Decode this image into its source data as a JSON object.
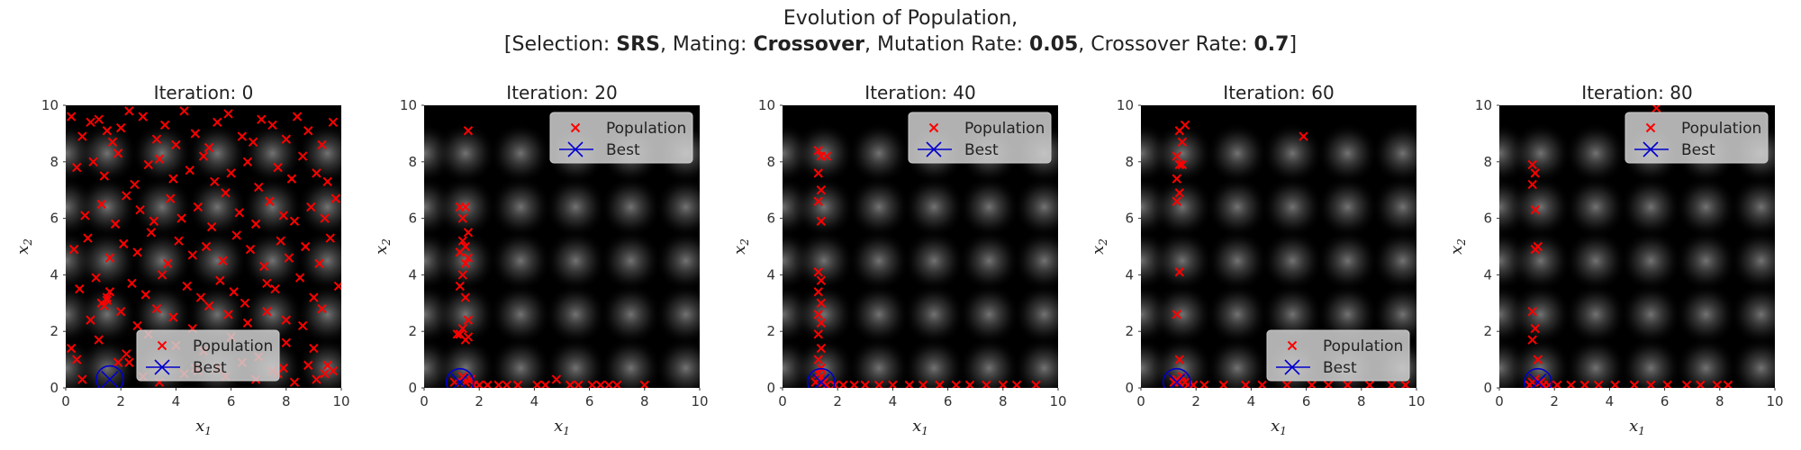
{
  "header": {
    "line1": "Evolution of Population,",
    "prefix": "[Selection: ",
    "selection": "SRS",
    "mating_label": ", Mating: ",
    "mating": "Crossover",
    "mutation_label": ", Mutation Rate: ",
    "mutation_rate": "0.05",
    "crossover_label": ", Crossover Rate: ",
    "crossover_rate": "0.7",
    "suffix": "]"
  },
  "colors": {
    "population": "#ff0000",
    "best": "#0000cc",
    "background": "#000000"
  },
  "legend_labels": [
    "Population",
    "Best"
  ],
  "chart_data": [
    {
      "type": "scatter",
      "title": "Iteration: 0",
      "xlabel": "x1",
      "ylabel": "x2",
      "xlim": [
        0,
        10
      ],
      "ylim": [
        0,
        10
      ],
      "xticks": [
        0,
        2,
        4,
        6,
        8,
        10
      ],
      "yticks": [
        0,
        2,
        4,
        6,
        8,
        10
      ],
      "legend": "lower-center",
      "series": [
        {
          "name": "Population",
          "marker": "x",
          "x": [
            0.2,
            0.6,
            0.9,
            1.2,
            1.5,
            1.7,
            2.0,
            2.3,
            2.8,
            3.3,
            3.6,
            4.0,
            4.3,
            4.7,
            5.2,
            5.5,
            5.9,
            6.4,
            6.8,
            7.1,
            7.5,
            8.0,
            8.4,
            8.8,
            9.3,
            9.7,
            0.4,
            1.0,
            1.4,
            1.9,
            2.5,
            3.0,
            3.4,
            3.9,
            4.5,
            5.0,
            5.4,
            6.0,
            6.6,
            7.0,
            7.7,
            8.2,
            8.6,
            9.1,
            9.5,
            0.7,
            1.3,
            1.8,
            2.2,
            2.7,
            3.2,
            3.8,
            4.2,
            4.8,
            5.3,
            5.8,
            6.3,
            6.9,
            7.4,
            7.9,
            8.3,
            8.9,
            9.4,
            9.8,
            0.3,
            0.8,
            1.6,
            2.1,
            2.6,
            3.1,
            3.7,
            4.1,
            4.6,
            5.1,
            5.7,
            6.2,
            6.7,
            7.2,
            7.8,
            8.1,
            8.7,
            9.2,
            9.6,
            0.5,
            1.1,
            1.5,
            2.4,
            2.9,
            3.5,
            4.4,
            4.9,
            5.6,
            6.1,
            6.5,
            7.3,
            7.6,
            8.5,
            9.0,
            9.9,
            0.9,
            1.4,
            2.0,
            2.6,
            3.3,
            3.9,
            4.6,
            5.2,
            5.9,
            6.6,
            7.3,
            8.0,
            8.6,
            9.3,
            0.2,
            1.2,
            2.2,
            3.0,
            4.0,
            5.0,
            6.0,
            7.0,
            8.0,
            9.0,
            1.5,
            1.3,
            1.6,
            3.6,
            4.8,
            6.4,
            7.9,
            9.4,
            0.6,
            2.8,
            5.5,
            8.3,
            9.7,
            1.9,
            4.3,
            6.9,
            8.8,
            3.4,
            5.8,
            7.5,
            9.1,
            0.4,
            2.3,
            4.7,
            7.7,
            9.5
          ],
          "y": [
            9.6,
            8.9,
            9.4,
            9.5,
            9.1,
            8.7,
            9.2,
            9.8,
            9.6,
            8.8,
            9.3,
            8.6,
            9.8,
            9.0,
            8.5,
            9.4,
            9.7,
            8.9,
            8.7,
            9.5,
            9.3,
            8.8,
            9.6,
            9.1,
            8.6,
            9.4,
            7.8,
            8.0,
            7.5,
            8.3,
            7.2,
            7.9,
            8.1,
            7.4,
            7.7,
            8.2,
            7.3,
            7.6,
            8.0,
            7.1,
            7.8,
            7.4,
            8.2,
            7.6,
            7.3,
            6.1,
            6.5,
            5.8,
            6.8,
            6.3,
            5.9,
            6.7,
            6.0,
            6.4,
            5.7,
            6.9,
            6.2,
            5.8,
            6.6,
            6.1,
            5.9,
            6.4,
            6.0,
            6.7,
            4.9,
            5.3,
            4.6,
            5.1,
            4.8,
            5.5,
            4.4,
            5.2,
            4.7,
            5.0,
            4.5,
            5.4,
            4.9,
            4.3,
            5.2,
            4.6,
            5.0,
            4.4,
            5.3,
            3.5,
            3.9,
            3.1,
            3.7,
            3.3,
            4.0,
            3.6,
            3.2,
            3.8,
            3.4,
            3.0,
            3.7,
            3.5,
            3.9,
            3.2,
            3.6,
            2.4,
            2.9,
            2.7,
            2.2,
            2.8,
            2.5,
            2.1,
            2.9,
            2.6,
            2.3,
            2.7,
            2.4,
            2.2,
            2.8,
            1.4,
            1.7,
            1.2,
            1.9,
            1.5,
            1.3,
            1.8,
            1.1,
            1.6,
            1.4,
            3.2,
            3.0,
            3.4,
            0.8,
            0.6,
            0.9,
            0.7,
            0.5,
            0.3,
            0.4,
            0.7,
            0.2,
            0.6,
            0.9,
            0.5,
            0.3,
            0.8,
            0.2,
            0.4,
            0.6,
            0.3,
            1.0,
            0.9,
            0.7,
            0.5,
            0.8
          ]
        },
        {
          "name": "Best",
          "marker": "x-in-circle",
          "x": [
            1.6
          ],
          "y": [
            0.3
          ]
        }
      ]
    },
    {
      "type": "scatter",
      "title": "Iteration: 20",
      "xlabel": "x1",
      "ylabel": "x2",
      "xlim": [
        0,
        10
      ],
      "ylim": [
        0,
        10
      ],
      "xticks": [
        0,
        2,
        4,
        6,
        8,
        10
      ],
      "yticks": [
        0,
        2,
        4,
        6,
        8,
        10
      ],
      "legend": "upper-right",
      "series": [
        {
          "name": "Population",
          "marker": "x",
          "x": [
            1.6,
            1.3,
            1.5,
            1.4,
            1.6,
            1.4,
            1.5,
            1.3,
            1.6,
            1.5,
            1.4,
            1.3,
            1.5,
            1.6,
            1.4,
            1.3,
            1.5,
            1.2,
            1.6,
            1.4,
            1.7,
            1.1,
            1.5,
            1.8,
            2.0,
            2.3,
            2.7,
            3.0,
            3.4,
            4.1,
            4.4,
            4.8,
            5.3,
            5.6,
            6.1,
            6.4,
            6.7,
            7.0,
            8.0
          ],
          "y": [
            9.1,
            6.4,
            6.4,
            6.0,
            5.5,
            5.2,
            5.0,
            4.8,
            4.6,
            4.4,
            4.0,
            3.6,
            3.2,
            2.4,
            2.1,
            1.9,
            1.7,
            1.9,
            1.8,
            0.4,
            0.3,
            0.2,
            0.2,
            0.1,
            0.1,
            0.1,
            0.1,
            0.1,
            0.1,
            0.1,
            0.1,
            0.3,
            0.1,
            0.1,
            0.1,
            0.1,
            0.1,
            0.1,
            0.1
          ]
        },
        {
          "name": "Best",
          "marker": "x-in-circle",
          "x": [
            1.3
          ],
          "y": [
            0.2
          ]
        }
      ]
    },
    {
      "type": "scatter",
      "title": "Iteration: 40",
      "xlabel": "x1",
      "ylabel": "x2",
      "xlim": [
        0,
        10
      ],
      "ylim": [
        0,
        10
      ],
      "xticks": [
        0,
        2,
        4,
        6,
        8,
        10
      ],
      "yticks": [
        0,
        2,
        4,
        6,
        8,
        10
      ],
      "legend": "upper-right",
      "series": [
        {
          "name": "Population",
          "marker": "x",
          "x": [
            1.3,
            1.4,
            1.6,
            1.3,
            1.4,
            1.3,
            1.4,
            1.3,
            1.4,
            1.3,
            1.4,
            1.3,
            1.4,
            1.3,
            1.4,
            1.3,
            1.4,
            1.3,
            1.4,
            1.3,
            1.5,
            1.2,
            1.6,
            1.9,
            2.2,
            2.6,
            3.0,
            3.5,
            4.0,
            4.6,
            5.1,
            5.7,
            6.3,
            6.8,
            7.4,
            8.0,
            8.5,
            9.2
          ],
          "y": [
            8.4,
            8.2,
            8.2,
            7.6,
            7.0,
            6.6,
            5.9,
            4.1,
            3.8,
            3.4,
            3.0,
            2.6,
            2.3,
            1.9,
            1.4,
            1.0,
            0.7,
            0.5,
            0.4,
            0.3,
            0.2,
            0.2,
            0.1,
            0.1,
            0.1,
            0.1,
            0.1,
            0.1,
            0.1,
            0.1,
            0.1,
            0.1,
            0.1,
            0.1,
            0.1,
            0.1,
            0.1,
            0.1
          ]
        },
        {
          "name": "Best",
          "marker": "x-in-circle",
          "x": [
            1.4
          ],
          "y": [
            0.2
          ]
        }
      ]
    },
    {
      "type": "scatter",
      "title": "Iteration: 60",
      "xlabel": "x1",
      "ylabel": "x2",
      "xlim": [
        0,
        10
      ],
      "ylim": [
        0,
        10
      ],
      "xticks": [
        0,
        2,
        4,
        6,
        8,
        10
      ],
      "yticks": [
        0,
        2,
        4,
        6,
        8,
        10
      ],
      "legend": "lower-right",
      "series": [
        {
          "name": "Population",
          "marker": "x",
          "x": [
            1.6,
            1.4,
            1.5,
            1.3,
            1.4,
            1.5,
            1.3,
            1.4,
            1.3,
            1.4,
            1.3,
            1.4,
            1.5,
            1.3,
            1.4,
            5.9,
            1.2,
            1.6,
            1.7,
            1.9,
            2.3,
            3.0,
            3.8,
            4.4,
            5.3,
            6.2,
            6.8,
            7.5,
            8.3,
            9.1,
            9.6
          ],
          "y": [
            9.3,
            9.1,
            8.7,
            8.2,
            7.9,
            7.9,
            7.4,
            6.9,
            6.6,
            4.1,
            2.6,
            1.0,
            0.4,
            0.3,
            0.2,
            8.9,
            0.2,
            0.2,
            0.1,
            0.1,
            0.1,
            0.1,
            0.1,
            0.1,
            0.1,
            0.1,
            0.1,
            0.1,
            0.1,
            0.1,
            0.1
          ]
        },
        {
          "name": "Best",
          "marker": "x-in-circle",
          "x": [
            1.3
          ],
          "y": [
            0.2
          ]
        }
      ]
    },
    {
      "type": "scatter",
      "title": "Iteration: 80",
      "xlabel": "x1",
      "ylabel": "x2",
      "xlim": [
        0,
        10
      ],
      "ylim": [
        0,
        10
      ],
      "xticks": [
        0,
        2,
        4,
        6,
        8,
        10
      ],
      "yticks": [
        0,
        2,
        4,
        6,
        8,
        10
      ],
      "legend": "upper-right",
      "series": [
        {
          "name": "Population",
          "marker": "x",
          "x": [
            5.7,
            1.2,
            1.3,
            1.2,
            1.3,
            1.4,
            1.3,
            1.2,
            1.3,
            1.2,
            1.4,
            1.3,
            1.2,
            1.5,
            1.1,
            1.6,
            1.8,
            2.1,
            2.6,
            3.1,
            3.6,
            4.2,
            4.9,
            5.5,
            6.1,
            6.8,
            7.3,
            7.9,
            8.3
          ],
          "y": [
            9.9,
            7.9,
            7.6,
            7.2,
            6.3,
            5.0,
            4.9,
            2.7,
            2.1,
            1.7,
            1.0,
            0.3,
            0.2,
            0.2,
            0.1,
            0.1,
            0.1,
            0.1,
            0.1,
            0.1,
            0.1,
            0.1,
            0.1,
            0.1,
            0.1,
            0.1,
            0.1,
            0.1,
            0.1
          ]
        },
        {
          "name": "Best",
          "marker": "x-in-circle",
          "x": [
            1.4
          ],
          "y": [
            0.2
          ]
        }
      ]
    }
  ]
}
